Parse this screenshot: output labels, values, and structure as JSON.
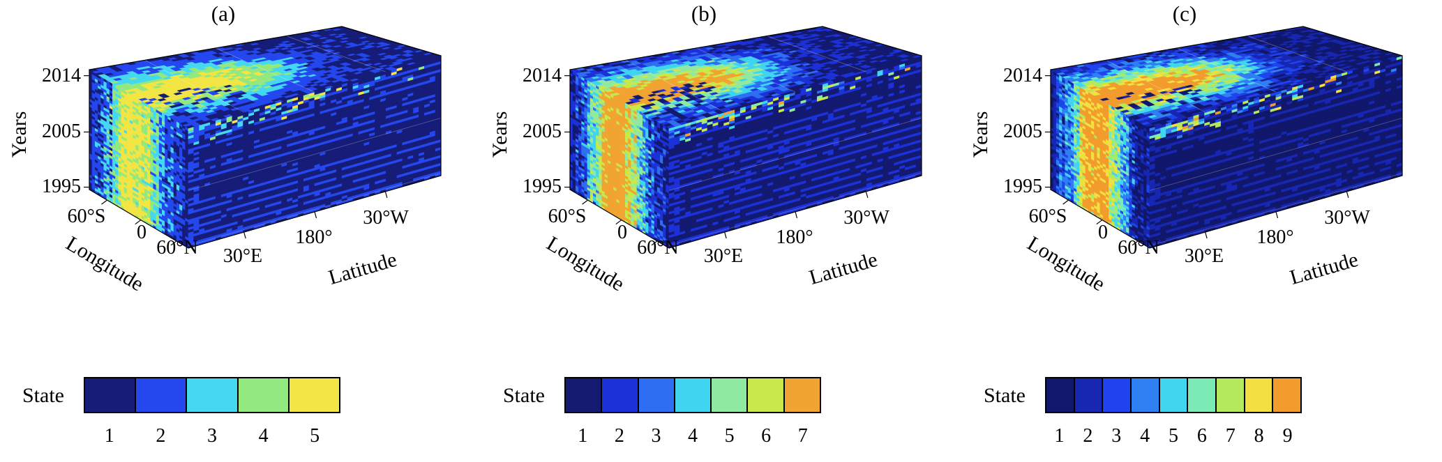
{
  "figure": {
    "colorbar_label": "State"
  },
  "chart_data": [
    {
      "type": "heatmap",
      "render": "3d-cube-state-map",
      "title": "(a)",
      "n_states": 5,
      "state_ticks": [
        "1",
        "2",
        "3",
        "4",
        "5"
      ],
      "state_colors": [
        "#161d78",
        "#2447ee",
        "#45d8f0",
        "#93e87f",
        "#f2e544"
      ],
      "colorbar_label": "State",
      "axes": {
        "z": {
          "label": "Years",
          "ticks": [
            "2014",
            "2005",
            "1995"
          ]
        },
        "x": {
          "label": "Longitude",
          "ticks": [
            "60°S",
            "0",
            "60°N"
          ]
        },
        "y": {
          "label": "Latitude",
          "ticks": [
            "30°E",
            "180°",
            "30°W"
          ]
        }
      },
      "pattern_summary": "High states (yellow/green) form a band over mid longitudes on the longitude-years face; latitude-years face is mostly state 1 (dark blue) with thin state-2 layers; top 2014 slice shows high states over 30°E-180° fading to state 1 toward 30°W."
    },
    {
      "type": "heatmap",
      "render": "3d-cube-state-map",
      "title": "(b)",
      "n_states": 7,
      "state_ticks": [
        "1",
        "2",
        "3",
        "4",
        "5",
        "6",
        "7"
      ],
      "state_colors": [
        "#131a70",
        "#1d31d8",
        "#2e6ef2",
        "#3fd4f0",
        "#90e9a0",
        "#c9e84a",
        "#f2a432"
      ],
      "colorbar_label": "State",
      "axes": {
        "z": {
          "label": "Years",
          "ticks": [
            "2014",
            "2005",
            "1995"
          ]
        },
        "x": {
          "label": "Longitude",
          "ticks": [
            "60°S",
            "0",
            "60°N"
          ]
        },
        "y": {
          "label": "Latitude",
          "ticks": [
            "30°E",
            "180°",
            "30°W"
          ]
        }
      },
      "pattern_summary": "Same cube with 7 states: orange highest states at the core of the mid-longitude band, surrounded by green/cyan, with state 1 dominating the latitude-years face."
    },
    {
      "type": "heatmap",
      "render": "3d-cube-state-map",
      "title": "(c)",
      "n_states": 9,
      "state_ticks": [
        "1",
        "2",
        "3",
        "4",
        "5",
        "6",
        "7",
        "8",
        "9"
      ],
      "state_colors": [
        "#11186b",
        "#1727b2",
        "#1f44ee",
        "#2f80f2",
        "#41d6f0",
        "#7ceab5",
        "#b4e95c",
        "#f2e040",
        "#f29c2e"
      ],
      "colorbar_label": "State",
      "axes": {
        "z": {
          "label": "Years",
          "ticks": [
            "2014",
            "2005",
            "1995"
          ]
        },
        "x": {
          "label": "Longitude",
          "ticks": [
            "60°S",
            "0",
            "60°N"
          ]
        },
        "y": {
          "label": "Latitude",
          "ticks": [
            "30°E",
            "180°",
            "30°W"
          ]
        }
      },
      "pattern_summary": "Same cube with 9 states: finer-grained texture, orange/yellow core over mid longitudes, blues elsewhere, state 1 dominating the latitude-years face."
    }
  ]
}
